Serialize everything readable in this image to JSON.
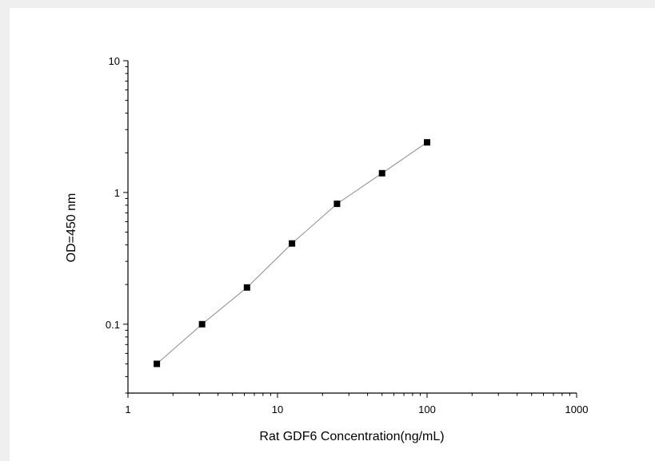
{
  "chart_data": {
    "type": "scatter",
    "title": "",
    "xlabel": "Rat GDF6 Concentration(ng/mL)",
    "ylabel": "OD=450 nm",
    "x_scale": "log",
    "y_scale": "log",
    "xlim": [
      1,
      1000
    ],
    "ylim": [
      0.03,
      10
    ],
    "x_ticks": [
      {
        "value": 1,
        "label": "1"
      },
      {
        "value": 10,
        "label": "10"
      },
      {
        "value": 100,
        "label": "100"
      },
      {
        "value": 1000,
        "label": "1000"
      }
    ],
    "y_ticks": [
      {
        "value": 0.1,
        "label": "0.1"
      },
      {
        "value": 1,
        "label": "1"
      },
      {
        "value": 10,
        "label": "10"
      }
    ],
    "grid": false,
    "legend": "none",
    "series": [
      {
        "x": [
          1.56,
          3.13,
          6.25,
          12.5,
          25,
          50,
          100
        ],
        "y": [
          0.05,
          0.1,
          0.19,
          0.41,
          0.82,
          1.4,
          2.4
        ],
        "marker": "square",
        "marker_color": "#000000",
        "line_color": "#8c8c8c"
      }
    ]
  }
}
